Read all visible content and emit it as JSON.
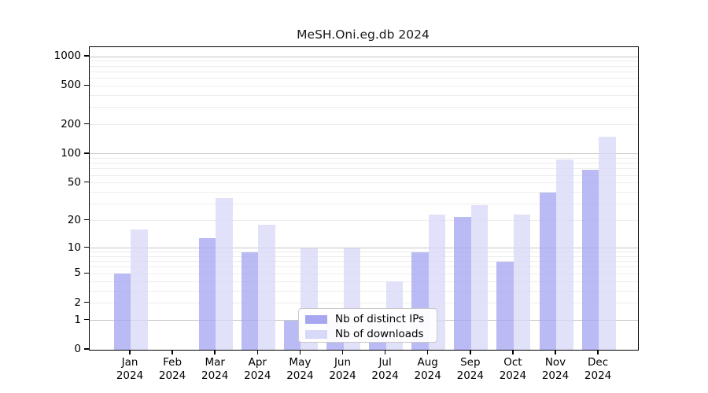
{
  "title": "MeSH.Oni.eg.db 2024",
  "chart_data": {
    "type": "bar",
    "title": "MeSH.Oni.eg.db 2024",
    "categories": [
      "Jan",
      "Feb",
      "Mar",
      "Apr",
      "May",
      "Jun",
      "Jul",
      "Aug",
      "Sep",
      "Oct",
      "Nov",
      "Dec"
    ],
    "year_label": "2024",
    "series": [
      {
        "name": "Nb of distinct IPs",
        "color": "#a7a7f1",
        "values": [
          5,
          0,
          13,
          9,
          1,
          1,
          1,
          9,
          22,
          7,
          40,
          68
        ]
      },
      {
        "name": "Nb of downloads",
        "color": "#d8d8f8",
        "values": [
          16,
          0,
          35,
          18,
          10,
          10,
          4,
          23,
          29,
          23,
          88,
          150
        ]
      }
    ],
    "yscale": "log10(1+v)",
    "ylim": [
      0,
      1250
    ],
    "ytick_values": [
      0,
      1,
      2,
      5,
      10,
      20,
      50,
      100,
      200,
      500,
      1000
    ],
    "ytick_labels": [
      "0",
      "1",
      "2",
      "5",
      "10",
      "20",
      "50",
      "100",
      "200",
      "500",
      "1000"
    ],
    "grid": {
      "major_values": [
        1,
        10,
        100,
        1000
      ],
      "minor_values": [
        2,
        3,
        4,
        5,
        6,
        7,
        8,
        9,
        20,
        30,
        40,
        50,
        60,
        70,
        80,
        90,
        200,
        300,
        400,
        500,
        600,
        700,
        800,
        900
      ]
    },
    "legend_position": "bottom-center"
  },
  "styles": {
    "bar_alpha": 0.78,
    "major_grid_color": "#c6c6c6",
    "minor_grid_color": "#ededed",
    "axis_color": "#000000",
    "background": "#ffffff"
  }
}
